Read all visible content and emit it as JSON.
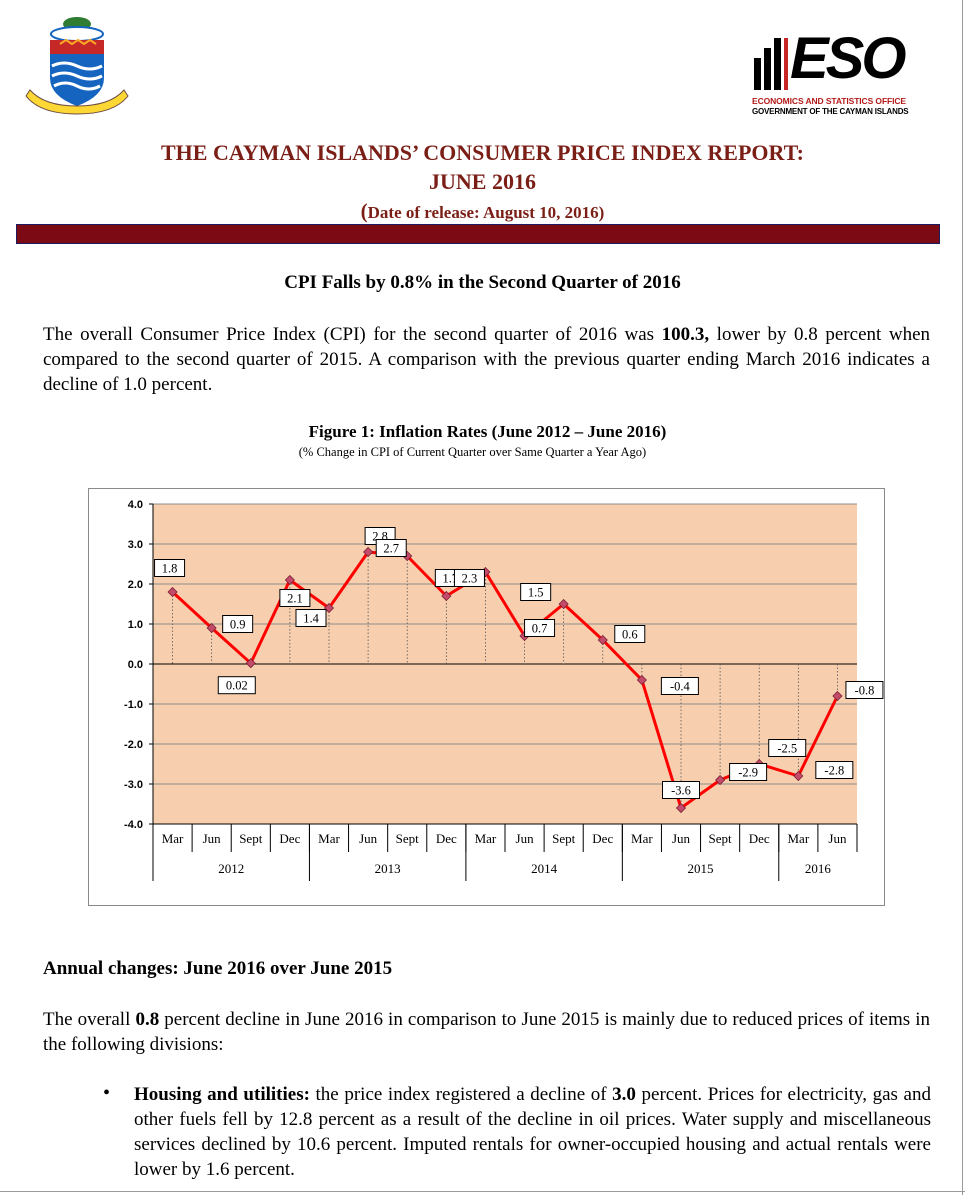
{
  "header": {
    "title_line1": "THE CAYMAN ISLANDS’ CONSUMER PRICE INDEX REPORT:",
    "title_line2": "JUNE 2016",
    "release_open": "(",
    "release_text": "Date of release: August 10, 2016)",
    "eso_word": "ESO",
    "eso_line1": "ECONOMICS AND STATISTICS OFFICE",
    "eso_line2": "GOVERNMENT OF THE CAYMAN ISLANDS",
    "crest_motto": "HE HATH FOUNDED IT UPON THE SEAS",
    "accent_color": "#7b0a14"
  },
  "section_heading": "CPI Falls by 0.8% in the Second Quarter of 2016",
  "intro": {
    "part1": "The overall Consumer Price Index (CPI) for the second quarter of 2016 was ",
    "cpi_value": "100.3,",
    "part2": " lower by 0.8 percent when compared to the second quarter of 2015. A comparison with the previous quarter ending March 2016 indicates a decline of 1.0 percent."
  },
  "figure": {
    "title": "Figure 1: Inflation Rates (June 2012 – June 2016)",
    "subtitle": "(% Change in CPI of Current Quarter over Same Quarter a Year Ago)"
  },
  "chart_data": {
    "type": "line",
    "categories": [
      "Mar",
      "Jun",
      "Sept",
      "Dec",
      "Mar",
      "Jun",
      "Sept",
      "Dec",
      "Mar",
      "Jun",
      "Sept",
      "Dec",
      "Mar",
      "Jun",
      "Sept",
      "Dec",
      "Mar",
      "Jun"
    ],
    "years": [
      {
        "label": "2012",
        "span": 4
      },
      {
        "label": "2013",
        "span": 4
      },
      {
        "label": "2014",
        "span": 4
      },
      {
        "label": "2015",
        "span": 4
      },
      {
        "label": "2016",
        "span": 2
      }
    ],
    "series": [
      {
        "values": [
          1.8,
          0.9,
          0.02,
          2.1,
          1.4,
          2.8,
          2.7,
          1.7,
          2.3,
          0.7,
          1.5,
          0.6,
          -0.4,
          -3.6,
          -2.9,
          -2.5,
          -2.8,
          -0.8
        ]
      }
    ],
    "data_labels": [
      "1.8",
      "0.9",
      "0.02",
      "2.1",
      "1.4",
      "2.8",
      "2.7",
      "1.7",
      "2.3",
      "0.7",
      "1.5",
      "0.6",
      "-0.4",
      "-3.6",
      "-2.9",
      "-2.5",
      "-2.8",
      "-0.8"
    ],
    "yticks": [
      "4.0",
      "3.0",
      "2.0",
      "1.0",
      "0.0",
      "-1.0",
      "-2.0",
      "-3.0",
      "-4.0"
    ],
    "ylim": [
      -4,
      4
    ],
    "grid": true,
    "plot_background": "#f8cfae",
    "line_color": "#ff0000",
    "marker_color": "#c44a6a"
  },
  "annual": {
    "heading": "Annual changes: June 2016 over June 2015",
    "part1": "The overall ",
    "bold_value": "0.8",
    "part2": " percent decline in June 2016 in comparison to June 2015 is mainly due to reduced prices of items in the following divisions:"
  },
  "bullet": {
    "symbol": "•",
    "label": "Housing and utilities:",
    "part1": " the price index registered a decline of ",
    "bold_value": "3.0",
    "part2": " percent. Prices for electricity, gas and other fuels fell by 12.8 percent as a result of the decline in oil prices. Water supply and miscellaneous services declined by 10.6 percent. Imputed rentals for owner-occupied housing and actual rentals were lower by 1.6 percent."
  }
}
